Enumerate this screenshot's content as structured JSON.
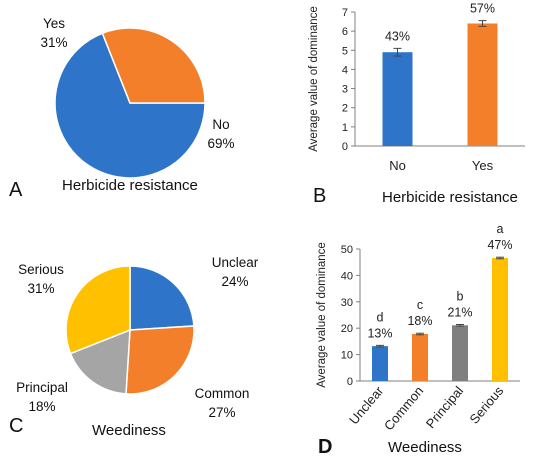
{
  "figure": {
    "panels": {
      "A": {
        "letter": "A",
        "title": "Herbicide resistance"
      },
      "B": {
        "letter": "B",
        "title": "Herbicide resistance"
      },
      "C": {
        "letter": "C",
        "title": "Weediness"
      },
      "D": {
        "letter": "D",
        "title": "Weediness"
      }
    }
  },
  "chart_data": [
    {
      "panel": "A",
      "type": "pie",
      "title": "Herbicide resistance",
      "slices": [
        {
          "label": "No",
          "percent_label": "69%",
          "value": 69,
          "color": "#2E75C9"
        },
        {
          "label": "Yes",
          "percent_label": "31%",
          "value": 31,
          "color": "#F47F2A"
        }
      ]
    },
    {
      "panel": "B",
      "type": "bar",
      "xlabel": "Herbicide resistance",
      "ylabel": "Average value of dominance",
      "ylim": [
        0,
        7
      ],
      "yticks": [
        0,
        1,
        2,
        3,
        4,
        5,
        6,
        7
      ],
      "categories": [
        "No",
        "Yes"
      ],
      "values": [
        4.9,
        6.4
      ],
      "errors": [
        0.2,
        0.15
      ],
      "data_labels": [
        "43%",
        "57%"
      ],
      "colors": [
        "#2E75C9",
        "#F47F2A"
      ]
    },
    {
      "panel": "C",
      "type": "pie",
      "title": "Weediness",
      "slices": [
        {
          "label": "Unclear",
          "percent_label": "24%",
          "value": 24,
          "color": "#2E75C9"
        },
        {
          "label": "Common",
          "percent_label": "27%",
          "value": 27,
          "color": "#F47F2A"
        },
        {
          "label": "Principal",
          "percent_label": "18%",
          "value": 18,
          "color": "#A5A5A5"
        },
        {
          "label": "Serious",
          "percent_label": "31%",
          "value": 31,
          "color": "#FFC000"
        }
      ]
    },
    {
      "panel": "D",
      "type": "bar",
      "xlabel": "Weediness",
      "ylabel": "Average value of dominance",
      "ylim": [
        0,
        50
      ],
      "yticks": [
        0,
        10,
        20,
        30,
        40,
        50
      ],
      "categories": [
        "Unclear",
        "Common",
        "Principal",
        "Serious"
      ],
      "values": [
        13.2,
        17.8,
        21.1,
        46.6
      ],
      "errors": [
        0.3,
        0.3,
        0.3,
        0.3
      ],
      "data_labels": [
        "13%",
        "18%",
        "21%",
        "47%"
      ],
      "letters": [
        "d",
        "c",
        "b",
        "a"
      ],
      "colors": [
        "#2E75C9",
        "#F47F2A",
        "#7F7F7F",
        "#FFC000"
      ]
    }
  ]
}
